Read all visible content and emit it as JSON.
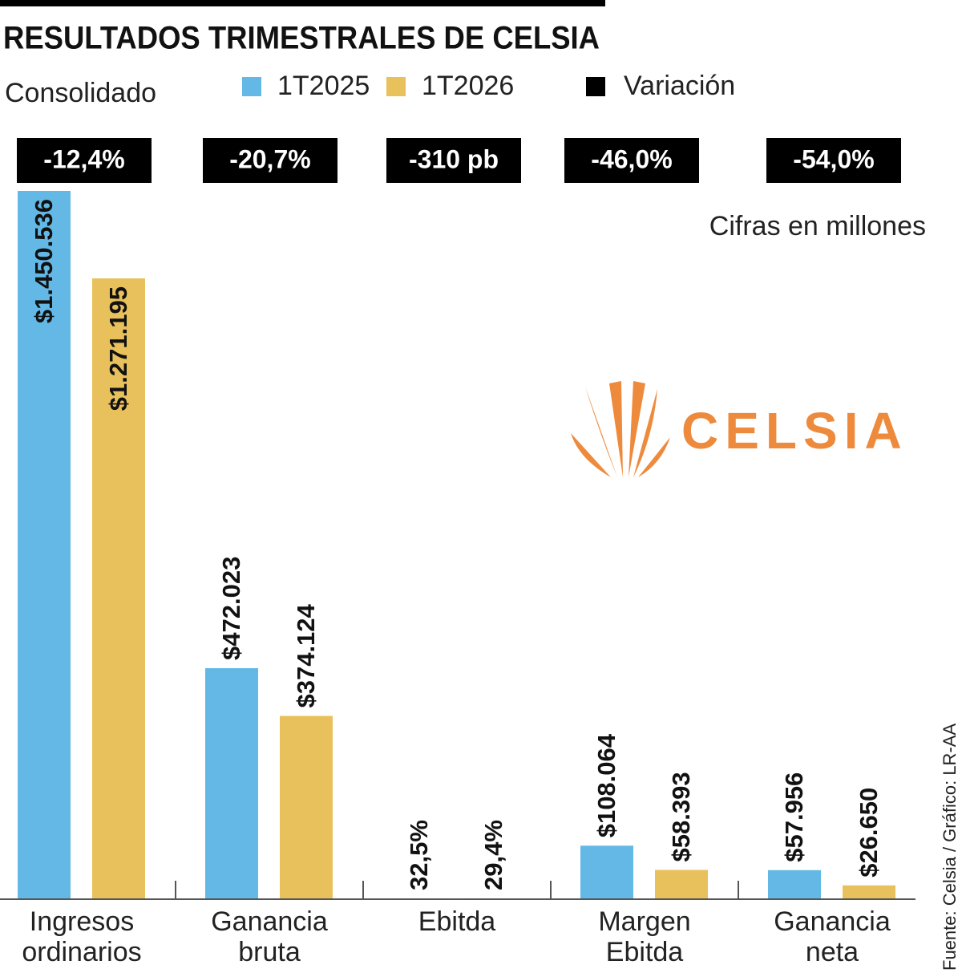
{
  "chart_data": {
    "type": "bar",
    "title": "RESULTADOS TRIMESTRALES DE CELSIA",
    "subtitle": "Consolidado",
    "note": "Cifras en millones",
    "source": "Fuente:  Celsia / Gráfico: LR-AA",
    "logo_text": "CELSIA",
    "categories": [
      "Ingresos ordinarios",
      "Ganancia bruta",
      "Ebitda",
      "Margen Ebitda",
      "Ganancia neta"
    ],
    "series": [
      {
        "name": "1T2025",
        "color": "#63b8e6",
        "values": [
          1450536,
          472023,
          32.5,
          108064,
          57956
        ],
        "value_labels": [
          "$1.450.536",
          "$472.023",
          "32,5%",
          "$108.064",
          "$57.956"
        ]
      },
      {
        "name": "1T2026",
        "color": "#e9c15c",
        "values": [
          1271195,
          374124,
          29.4,
          58393,
          26650
        ],
        "value_labels": [
          "$1.271.195",
          "$374.124",
          "29,4%",
          "$58.393",
          "$26.650"
        ]
      }
    ],
    "variation": {
      "name": "Variación",
      "color": "#000000",
      "values": [
        -12.4,
        -20.7,
        -310,
        -46.0,
        -54.0
      ],
      "value_labels": [
        "-12,4%",
        "-20,7%",
        "-310 pb",
        "-46,0%",
        "-54,0%"
      ]
    },
    "ylim": [
      0,
      1450536
    ]
  }
}
